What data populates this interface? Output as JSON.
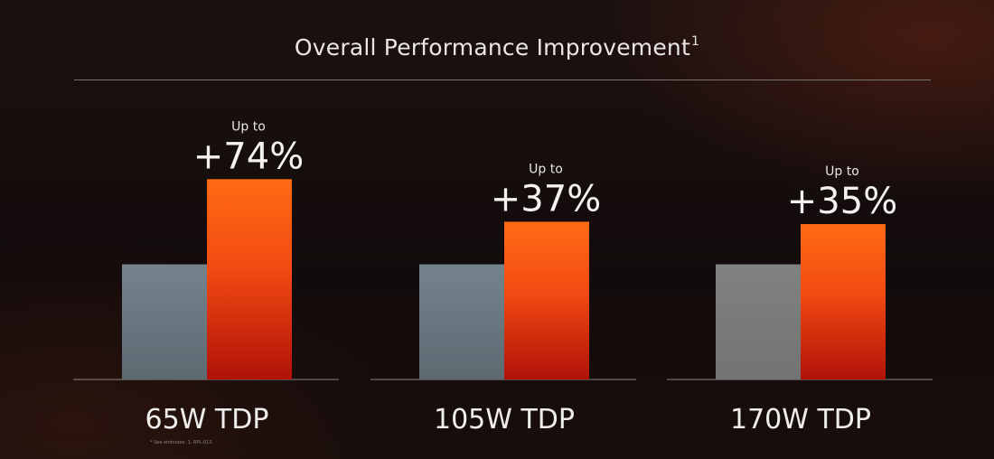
{
  "title": "Overall Performance Improvement",
  "title_superscript": "1",
  "footnote": "* See endnotes: 1. RPL-013.",
  "colors": {
    "baseline_bar": "#6f7d86",
    "baseline_bar_170": "#7b7d7c",
    "improved_bar_top": "#ff6a14",
    "improved_bar_bottom": "#b01208",
    "axis": "#8a8482",
    "text": "#e9e6e4"
  },
  "chart_data": {
    "type": "bar",
    "title": "Overall Performance Improvement",
    "categories": [
      "65W TDP",
      "105W TDP",
      "170W TDP"
    ],
    "series": [
      {
        "values": [
          100,
          100,
          100
        ]
      },
      {
        "values": [
          174,
          137,
          135
        ]
      }
    ],
    "data_labels": [
      {
        "prefix": "Up to",
        "value": "+74%"
      },
      {
        "prefix": "Up to",
        "value": "+37%"
      },
      {
        "prefix": "Up to",
        "value": "+35%"
      }
    ],
    "ylim": [
      0,
      175
    ],
    "grid": false,
    "legend": "none"
  }
}
